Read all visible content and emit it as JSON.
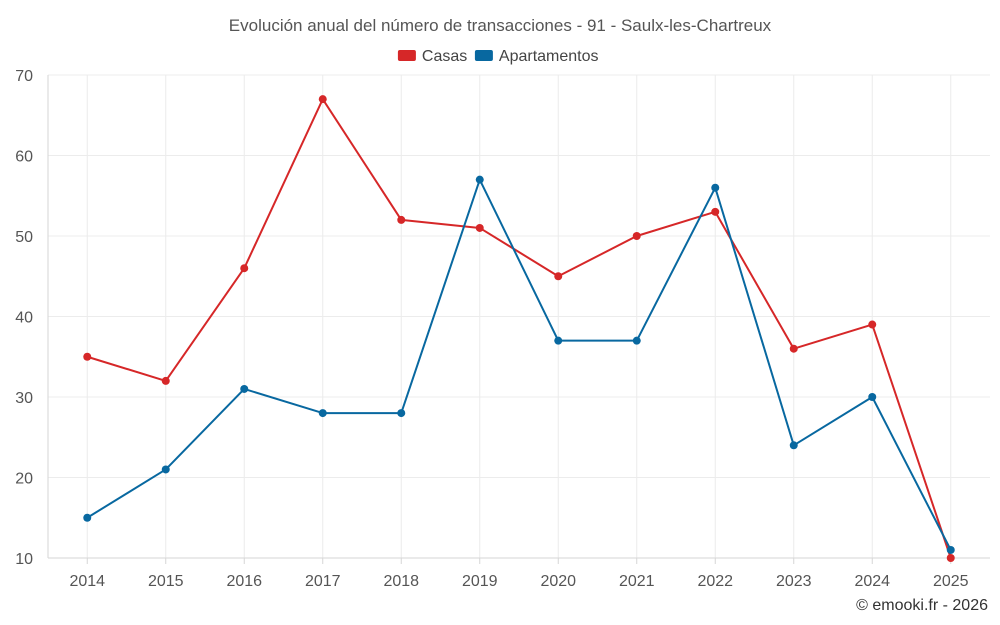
{
  "chart_data": {
    "type": "line",
    "title": "Evolución anual del número de transacciones - 91 - Saulx-les-Chartreux",
    "categories": [
      "2014",
      "2015",
      "2016",
      "2017",
      "2018",
      "2019",
      "2020",
      "2021",
      "2022",
      "2023",
      "2024",
      "2025"
    ],
    "series": [
      {
        "name": "Casas",
        "color": "#d62728",
        "values": [
          35,
          32,
          46,
          67,
          52,
          51,
          45,
          50,
          53,
          36,
          39,
          10
        ]
      },
      {
        "name": "Apartamentos",
        "color": "#0868a0",
        "values": [
          15,
          21,
          31,
          28,
          28,
          57,
          37,
          37,
          56,
          24,
          30,
          11
        ]
      }
    ],
    "ylim": [
      10,
      70
    ],
    "yticks": [
      10,
      20,
      30,
      40,
      50,
      60,
      70
    ],
    "xlabel": "",
    "ylabel": "",
    "grid": true,
    "legend_position": "top-center"
  },
  "credit": "© emooki.fr - 2026"
}
